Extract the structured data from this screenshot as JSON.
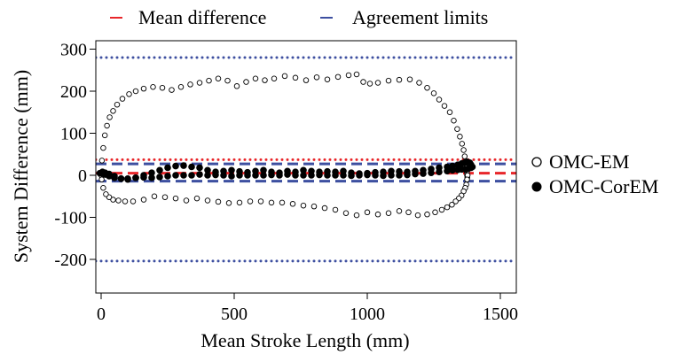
{
  "chart_data": {
    "type": "scatter",
    "xlabel": "Mean Stroke Length (mm)",
    "ylabel": "System Difference (mm)",
    "xlim": [
      -20,
      1560
    ],
    "ylim": [
      -280,
      320
    ],
    "xticks": [
      0,
      500,
      1000,
      1500
    ],
    "xtick_labels": [
      "0",
      "500",
      "1000",
      "1500"
    ],
    "yticks": [
      300,
      200,
      100,
      0,
      -100,
      -200
    ],
    "ytick_labels": [
      "300",
      "200",
      "100",
      "0",
      "-100",
      "-200"
    ],
    "grid": false,
    "top_legend": [
      {
        "label": "Mean difference",
        "color": "#e8262a"
      },
      {
        "label": "Agreement limits",
        "color": "#3d4fa0"
      }
    ],
    "side_legend": [
      {
        "label": "OMC-EM",
        "marker": "open-circle"
      },
      {
        "label": "OMC-CorEM",
        "marker": "filled-circle"
      }
    ],
    "reference_lines": [
      {
        "name": "OMC-EM upper limit",
        "y": 280,
        "color": "#3d4fa0",
        "style": "dotted"
      },
      {
        "name": "OMC-EM mean",
        "y": 37,
        "color": "#e8262a",
        "style": "dotted"
      },
      {
        "name": "OMC-EM lower limit",
        "y": -204,
        "color": "#3d4fa0",
        "style": "dotted"
      },
      {
        "name": "OMC-CorEM upper limit",
        "y": 27,
        "color": "#3d4fa0",
        "style": "dashed"
      },
      {
        "name": "OMC-CorEM mean",
        "y": 5,
        "color": "#e8262a",
        "style": "dashed"
      },
      {
        "name": "OMC-CorEM lower limit",
        "y": -14,
        "color": "#3d4fa0",
        "style": "dashed"
      }
    ],
    "series": [
      {
        "name": "OMC-EM",
        "marker": "open-circle",
        "x": [
          0,
          3,
          8,
          14,
          22,
          32,
          45,
          60,
          80,
          105,
          130,
          160,
          195,
          230,
          265,
          300,
          335,
          370,
          405,
          440,
          475,
          510,
          545,
          580,
          615,
          650,
          690,
          730,
          770,
          810,
          850,
          890,
          930,
          960,
          985,
          1010,
          1040,
          1080,
          1120,
          1160,
          1195,
          1225,
          1250,
          1270,
          1290,
          1310,
          1325,
          1338,
          1348,
          1356,
          1362,
          1366,
          1370,
          1372,
          1374,
          1375,
          1376,
          1377,
          1375,
          1372,
          1368,
          1362,
          1354,
          1344,
          1332,
          1318,
          1300,
          1280,
          1255,
          1225,
          1190,
          1155,
          1120,
          1080,
          1040,
          1000,
          960,
          920,
          880,
          840,
          800,
          760,
          720,
          680,
          640,
          600,
          560,
          520,
          480,
          440,
          400,
          360,
          320,
          280,
          240,
          200,
          160,
          120,
          90,
          65,
          45,
          30,
          18,
          8,
          2
        ],
        "y": [
          0,
          35,
          65,
          95,
          118,
          138,
          153,
          168,
          182,
          193,
          200,
          206,
          210,
          208,
          203,
          210,
          216,
          220,
          225,
          230,
          225,
          212,
          222,
          230,
          226,
          230,
          236,
          232,
          226,
          233,
          228,
          234,
          238,
          240,
          222,
          218,
          220,
          225,
          227,
          228,
          220,
          208,
          195,
          180,
          165,
          150,
          130,
          110,
          92,
          75,
          60,
          45,
          30,
          18,
          8,
          0,
          -5,
          0,
          -10,
          -22,
          -30,
          -38,
          -48,
          -55,
          -62,
          -70,
          -76,
          -82,
          -88,
          -93,
          -95,
          -88,
          -85,
          -90,
          -93,
          -88,
          -95,
          -90,
          -82,
          -78,
          -74,
          -72,
          -68,
          -65,
          -65,
          -62,
          -62,
          -65,
          -66,
          -63,
          -60,
          -55,
          -60,
          -55,
          -52,
          -50,
          -58,
          -62,
          -62,
          -60,
          -58,
          -52,
          -45,
          -30,
          -10
        ]
      },
      {
        "name": "OMC-CorEM",
        "marker": "filled-circle",
        "x": [
          -5,
          5,
          15,
          30,
          50,
          75,
          100,
          130,
          160,
          190,
          220,
          250,
          280,
          310,
          340,
          370,
          400,
          430,
          460,
          490,
          520,
          550,
          580,
          610,
          640,
          670,
          700,
          730,
          760,
          790,
          820,
          850,
          880,
          910,
          940,
          970,
          1000,
          1030,
          1060,
          1090,
          1120,
          1150,
          1180,
          1210,
          1240,
          1270,
          1300,
          1320,
          1340,
          1355,
          1365,
          1375,
          1385,
          1390,
          1395,
          1390,
          1380,
          1370,
          1355,
          1340,
          1320,
          1300,
          1270,
          1240,
          1210,
          1180,
          1150,
          1120,
          1090,
          1060,
          1030,
          1000,
          970,
          940,
          910,
          880,
          850,
          820,
          790,
          760,
          730,
          700,
          670,
          640,
          610,
          580,
          550,
          520,
          490,
          460,
          430,
          400,
          370,
          340,
          310,
          280,
          250,
          220,
          190,
          160,
          130,
          100,
          75,
          50,
          30,
          15,
          5
        ],
        "y": [
          5,
          8,
          6,
          3,
          -2,
          -8,
          -10,
          -6,
          0,
          6,
          12,
          18,
          22,
          23,
          20,
          18,
          12,
          8,
          10,
          12,
          9,
          7,
          10,
          12,
          8,
          6,
          10,
          8,
          12,
          10,
          8,
          9,
          8,
          10,
          6,
          4,
          5,
          7,
          8,
          10,
          9,
          8,
          10,
          12,
          15,
          18,
          20,
          22,
          25,
          28,
          30,
          32,
          30,
          25,
          20,
          18,
          16,
          14,
          14,
          13,
          12,
          10,
          8,
          6,
          4,
          3,
          1,
          0,
          0,
          -1,
          0,
          1,
          0,
          -1,
          0,
          0,
          0,
          1,
          0,
          0,
          0,
          2,
          0,
          1,
          0,
          0,
          0,
          0,
          -2,
          0,
          1,
          0,
          2,
          0,
          0,
          0,
          -2,
          -4,
          -6,
          -5,
          -6,
          -8,
          -8,
          -6,
          -2,
          2,
          4
        ]
      }
    ]
  }
}
